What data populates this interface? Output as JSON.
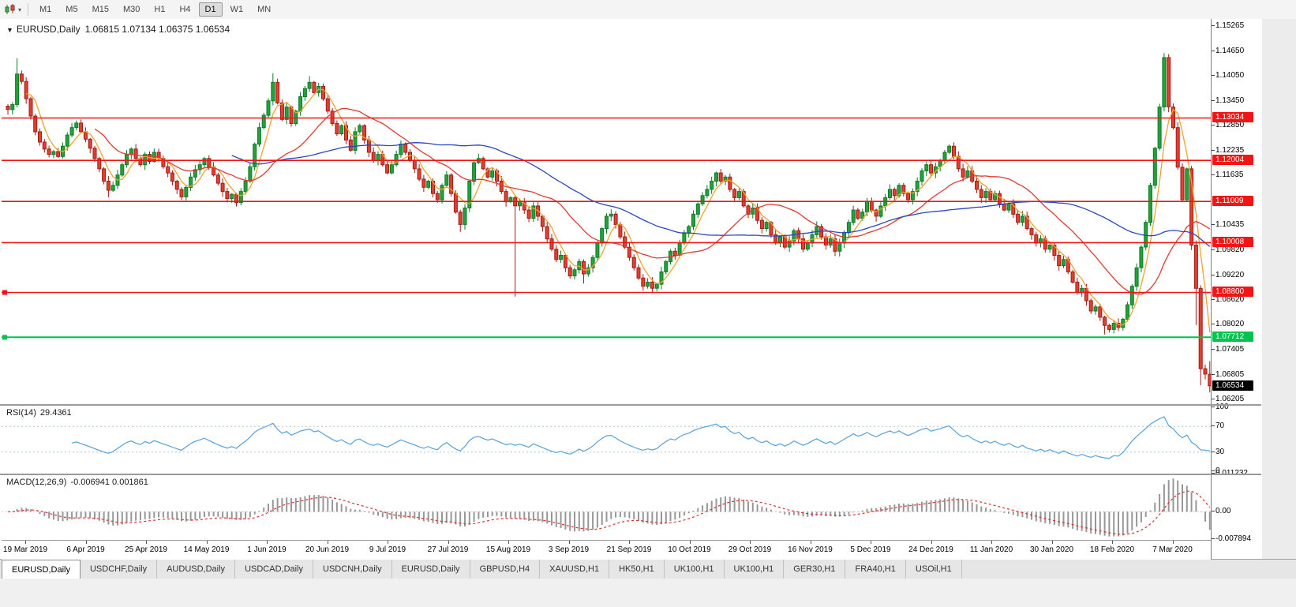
{
  "toolbar": {
    "timeframes": [
      "M1",
      "M5",
      "M15",
      "M30",
      "H1",
      "H4",
      "D1",
      "W1",
      "MN"
    ],
    "active_timeframe": "D1"
  },
  "chart_header": {
    "symbol_period": "EURUSD,Daily",
    "ohlc": "1.06815 1.07134 1.06375 1.06534"
  },
  "chart_data": {
    "type": "candlestick",
    "symbol": "EURUSD",
    "timeframe": "Daily",
    "last_ohlc": {
      "open": 1.06815,
      "high": 1.07134,
      "low": 1.06375,
      "close": 1.06534
    },
    "closes": [
      1.1324,
      1.1336,
      1.141,
      1.1392,
      1.135,
      1.1308,
      1.127,
      1.1245,
      1.1228,
      1.1215,
      1.1222,
      1.121,
      1.1235,
      1.1262,
      1.128,
      1.1291,
      1.127,
      1.1252,
      1.123,
      1.1205,
      1.118,
      1.115,
      1.1128,
      1.114,
      1.1165,
      1.119,
      1.1215,
      1.1228,
      1.1205,
      1.119,
      1.1215,
      1.1198,
      1.122,
      1.1205,
      1.1185,
      1.117,
      1.115,
      1.113,
      1.1112,
      1.1135,
      1.116,
      1.1178,
      1.119,
      1.1205,
      1.1185,
      1.1165,
      1.1145,
      1.1125,
      1.1108,
      1.1118,
      1.1098,
      1.1125,
      1.115,
      1.1185,
      1.124,
      1.128,
      1.131,
      1.1345,
      1.139,
      1.134,
      1.13,
      1.133,
      1.129,
      1.132,
      1.1355,
      1.1375,
      1.139,
      1.1365,
      1.138,
      1.135,
      1.132,
      1.129,
      1.1265,
      1.1285,
      1.125,
      1.1225,
      1.127,
      1.1285,
      1.125,
      1.122,
      1.12,
      1.1215,
      1.119,
      1.117,
      1.119,
      1.1215,
      1.124,
      1.122,
      1.12,
      1.118,
      1.1155,
      1.1135,
      1.115,
      1.112,
      1.1105,
      1.114,
      1.1165,
      1.112,
      1.1075,
      1.1045,
      1.1085,
      1.115,
      1.1195,
      1.1205,
      1.118,
      1.116,
      1.1175,
      1.115,
      1.1125,
      1.11,
      1.111,
      1.109,
      1.11,
      1.108,
      1.106,
      1.109,
      1.1065,
      1.104,
      1.101,
      1.0985,
      1.096,
      1.097,
      1.094,
      1.092,
      1.0935,
      1.0955,
      1.0925,
      1.094,
      1.0965,
      1.1,
      1.1035,
      1.1065,
      1.107,
      1.1045,
      1.1015,
      1.099,
      1.0965,
      1.094,
      1.0915,
      1.0895,
      1.0905,
      1.089,
      1.09,
      1.093,
      1.0955,
      1.098,
      1.097,
      1.1,
      1.1025,
      1.104,
      1.107,
      1.1095,
      1.1115,
      1.113,
      1.115,
      1.117,
      1.115,
      1.116,
      1.113,
      1.111,
      1.1125,
      1.109,
      1.107,
      1.1085,
      1.1055,
      1.1035,
      1.105,
      1.102,
      1.1,
      1.1015,
      1.099,
      1.1005,
      1.103,
      1.101,
      1.0985,
      1.1,
      1.102,
      1.104,
      1.1015,
      1.0995,
      1.101,
      1.098,
      1.1,
      1.1025,
      1.105,
      1.108,
      1.106,
      1.1075,
      1.11,
      1.108,
      1.1065,
      1.109,
      1.111,
      1.113,
      1.1115,
      1.114,
      1.112,
      1.1105,
      1.1125,
      1.115,
      1.1175,
      1.119,
      1.117,
      1.1185,
      1.12,
      1.122,
      1.1235,
      1.121,
      1.118,
      1.116,
      1.1175,
      1.115,
      1.113,
      1.111,
      1.1125,
      1.1105,
      1.112,
      1.1095,
      1.108,
      1.1095,
      1.107,
      1.105,
      1.1065,
      1.1035,
      1.102,
      1.1,
      1.101,
      1.0985,
      1.0995,
      1.097,
      1.0945,
      1.096,
      1.093,
      1.0905,
      1.088,
      1.089,
      1.086,
      1.0835,
      1.0845,
      1.082,
      1.08,
      1.079,
      1.0805,
      1.0795,
      1.0815,
      1.085,
      1.0895,
      1.094,
      1.099,
      1.105,
      1.114,
      1.123,
      1.133,
      1.145,
      1.133,
      1.128,
      1.1184,
      1.1105,
      1.118,
      1.0995,
      1.089,
      1.0695,
      1.0682,
      1.06534
    ],
    "overrides": {
      "2": {
        "h": 1.1448
      },
      "22": {
        "l": 1.1111
      },
      "58": {
        "h": 1.1412
      },
      "66": {
        "h": 1.1405
      },
      "99": {
        "l": 1.1027
      },
      "111": {
        "l": 1.087
      },
      "126": {
        "l": 1.0902
      },
      "141": {
        "l": 1.0879
      },
      "206": {
        "h": 1.1239
      },
      "240": {
        "l": 1.0778
      },
      "260": {
        "l": 1.0801
      },
      "261": {
        "l": 1.0655
      },
      "263": {
        "o": 1.06815,
        "h": 1.07134,
        "l": 1.06375,
        "c": 1.06534
      }
    },
    "moving_averages": [
      {
        "period": 5,
        "color": "#f0a32e"
      },
      {
        "period": 20,
        "color": "#e03a30"
      },
      {
        "period": 50,
        "color": "#2b47c0"
      }
    ],
    "horizontal_lines": [
      {
        "price": 1.13034,
        "label": "1.13034",
        "color": "#f21515",
        "width": 1.6
      },
      {
        "price": 1.12004,
        "label": "1.12004",
        "color": "#f21515",
        "width": 1.6
      },
      {
        "price": 1.11009,
        "label": "1.11009",
        "color": "#f21515",
        "width": 1.6
      },
      {
        "price": 1.10008,
        "label": "1.10008",
        "color": "#f21515",
        "width": 1.6
      },
      {
        "price": 1.088,
        "label": "1.08800",
        "color": "#f21515",
        "width": 1.6,
        "handle": true
      },
      {
        "price": 1.07712,
        "label": "1.07712",
        "color": "#00c44f",
        "width": 2,
        "handle": true
      }
    ],
    "current_price": {
      "value": 1.06534,
      "label": "1.06534",
      "bg": "#000000"
    },
    "price_axis_ticks": [
      "1.15265",
      "1.14650",
      "1.14050",
      "1.13450",
      "1.12850",
      "1.12235",
      "1.11635",
      "1.10435",
      "1.09820",
      "1.09220",
      "1.08620",
      "1.08020",
      "1.07405",
      "1.06805",
      "1.06205"
    ],
    "date_labels": [
      "19 Mar 2019",
      "6 Apr 2019",
      "25 Apr 2019",
      "14 May 2019",
      "1 Jun 2019",
      "20 Jun 2019",
      "9 Jul 2019",
      "27 Jul 2019",
      "15 Aug 2019",
      "3 Sep 2019",
      "21 Sep 2019",
      "10 Oct 2019",
      "29 Oct 2019",
      "16 Nov 2019",
      "5 Dec 2019",
      "24 Dec 2019",
      "11 Jan 2020",
      "30 Jan 2020",
      "18 Feb 2020",
      "7 Mar 2020"
    ],
    "rsi": {
      "label": "RSI(14)",
      "value_text": "29.4361",
      "period": 14,
      "levels": [
        70,
        30
      ],
      "axis_ticks": [
        "100",
        "70",
        "30",
        "0"
      ]
    },
    "macd": {
      "label": "MACD(12,26,9)",
      "values_text": "-0.006941 0.001861",
      "fast": 12,
      "slow": 26,
      "signal": 9,
      "axis_ticks": [
        {
          "text": "0.011232",
          "value": 0.011232
        },
        {
          "text": "0.00",
          "value": 0
        },
        {
          "text": "-0.007894",
          "value": -0.007894
        }
      ]
    }
  },
  "tabs": [
    {
      "label": "EURUSD,Daily",
      "active": true
    },
    {
      "label": "USDCHF,Daily",
      "active": false
    },
    {
      "label": "AUDUSD,Daily",
      "active": false
    },
    {
      "label": "USDCAD,Daily",
      "active": false
    },
    {
      "label": "USDCNH,Daily",
      "active": false
    },
    {
      "label": "EURUSD,Daily",
      "active": false
    },
    {
      "label": "GBPUSD,H4",
      "active": false
    },
    {
      "label": "XAUUSD,H1",
      "active": false
    },
    {
      "label": "HK50,H1",
      "active": false
    },
    {
      "label": "UK100,H1",
      "active": false
    },
    {
      "label": "UK100,H1",
      "active": false
    },
    {
      "label": "GER30,H1",
      "active": false
    },
    {
      "label": "FRA40,H1",
      "active": false
    },
    {
      "label": "USOil,H1",
      "active": false
    }
  ],
  "colors": {
    "up_fill": "#23a23c",
    "up_stroke": "#0e7a28",
    "down_fill": "#e43e32",
    "down_stroke": "#a01d14",
    "hline_red": "#f21515",
    "hline_green": "#00c44f",
    "rsi_line": "#57a0d8",
    "rsi_level": "#a9c7e2",
    "macd_bar": "#979797",
    "macd_signal": "#e03030",
    "current_price_bg": "#000000"
  }
}
